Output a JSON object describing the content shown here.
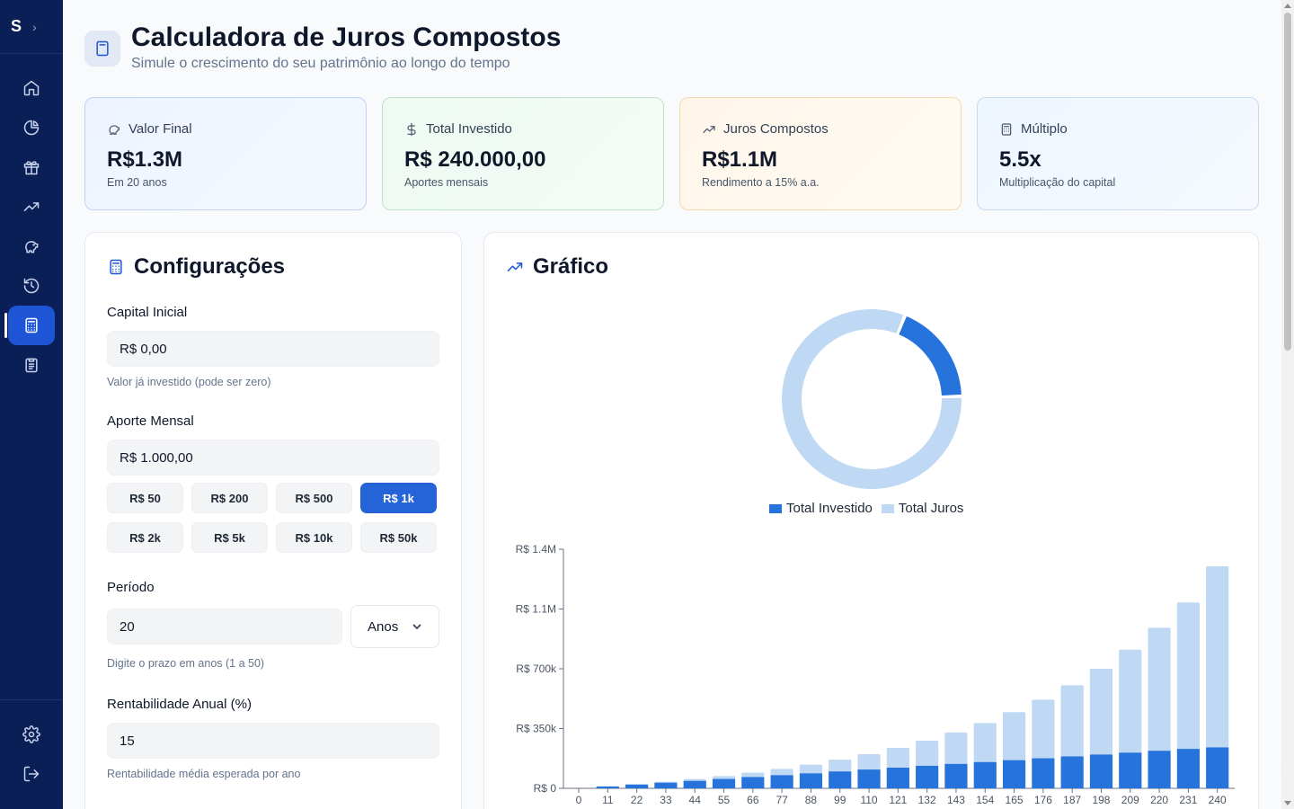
{
  "sidebar": {
    "logo": "S",
    "expand_icon": "chevron-right-icon",
    "items": [
      {
        "icon": "home-icon"
      },
      {
        "icon": "pie-chart-icon"
      },
      {
        "icon": "gift-icon"
      },
      {
        "icon": "trending-up-icon"
      },
      {
        "icon": "piggy-bank-icon"
      },
      {
        "icon": "history-icon"
      },
      {
        "icon": "calculator-icon",
        "active": true
      },
      {
        "icon": "clipboard-icon"
      }
    ],
    "bottom": [
      {
        "icon": "settings-icon"
      },
      {
        "icon": "logout-icon"
      }
    ]
  },
  "header": {
    "title": "Calculadora de Juros Compostos",
    "subtitle": "Simule o crescimento do seu patrimônio ao longo do tempo"
  },
  "stats": [
    {
      "label": "Valor Final",
      "value": "R$1.3M",
      "note": "Em 20 anos",
      "icon": "piggy-bank-icon"
    },
    {
      "label": "Total Investido",
      "value": "R$ 240.000,00",
      "note": "Aportes mensais",
      "icon": "dollar-icon"
    },
    {
      "label": "Juros Compostos",
      "value": "R$1.1M",
      "note": "Rendimento a 15% a.a.",
      "icon": "trending-up-icon"
    },
    {
      "label": "Múltiplo",
      "value": "5.5x",
      "note": "Multiplicação do capital",
      "icon": "calculator-icon"
    }
  ],
  "config": {
    "title": "Configurações",
    "capital_label": "Capital Inicial",
    "capital_value": "R$ 0,00",
    "capital_help": "Valor já investido (pode ser zero)",
    "aporte_label": "Aporte Mensal",
    "aporte_value": "R$ 1.000,00",
    "chips": [
      "R$ 50",
      "R$ 200",
      "R$ 500",
      "R$ 1k",
      "R$ 2k",
      "R$ 5k",
      "R$ 10k",
      "R$ 50k"
    ],
    "active_chip": "R$ 1k",
    "periodo_label": "Período",
    "periodo_value": "20",
    "periodo_unit": "Anos",
    "periodo_help": "Digite o prazo em anos (1 a 50)",
    "rent_label": "Rentabilidade Anual (%)",
    "rent_value": "15",
    "rent_help": "Rentabilidade média esperada por ano"
  },
  "chart": {
    "title": "Gráfico",
    "legend": [
      "Total Investido",
      "Total Juros"
    ],
    "colors": {
      "investido": "#2573db",
      "juros": "#bfd8f4"
    }
  },
  "chart_data": [
    {
      "type": "pie",
      "variant": "donut",
      "labels": [
        "Total Investido",
        "Total Juros"
      ],
      "values": [
        240000,
        1060000
      ]
    },
    {
      "type": "bar",
      "stacked": true,
      "x": [
        0,
        11,
        22,
        33,
        44,
        55,
        66,
        77,
        88,
        99,
        110,
        121,
        132,
        143,
        154,
        165,
        176,
        187,
        198,
        209,
        220,
        231,
        240
      ],
      "series": [
        {
          "name": "Total Investido",
          "values": [
            0,
            11000,
            22000,
            33000,
            44000,
            55000,
            66000,
            77000,
            88000,
            99000,
            110000,
            121000,
            132000,
            143000,
            154000,
            165000,
            176000,
            187000,
            198000,
            209000,
            220000,
            231000,
            240000
          ]
        },
        {
          "name": "Total Juros",
          "values": [
            0,
            700,
            2500,
            5800,
            10500,
            17000,
            26000,
            37000,
            51000,
            69000,
            90000,
            116000,
            147000,
            184000,
            228000,
            281000,
            343000,
            416000,
            502000,
            603000,
            720000,
            857000,
            1060000
          ]
        }
      ],
      "yticks": [
        "R$ 0",
        "R$ 350k",
        "R$ 700k",
        "R$ 1.1M",
        "R$ 1.4M"
      ],
      "ytick_values": [
        0,
        350000,
        700000,
        1050000,
        1400000
      ],
      "ylim": [
        0,
        1400000
      ]
    }
  ]
}
